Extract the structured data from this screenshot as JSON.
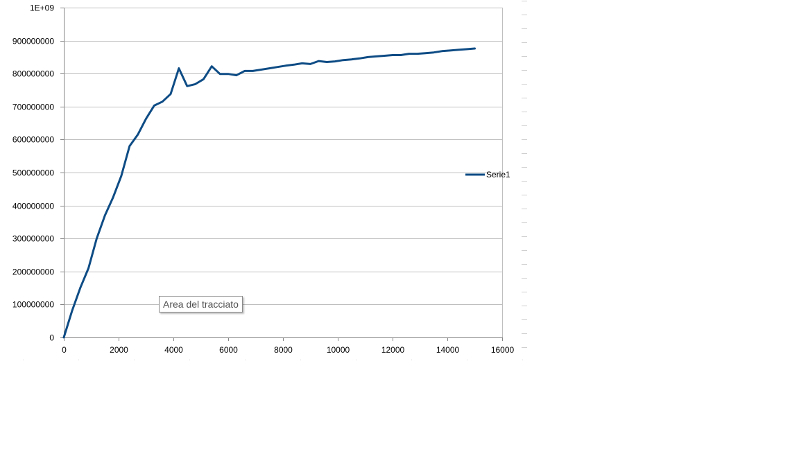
{
  "chart_data": {
    "type": "line",
    "title": "",
    "xlabel": "",
    "ylabel": "",
    "xlim": [
      0,
      16000
    ],
    "ylim": [
      0,
      1000000000
    ],
    "x_ticks": [
      "0",
      "2000",
      "4000",
      "6000",
      "8000",
      "10000",
      "12000",
      "14000",
      "16000"
    ],
    "y_ticks": [
      "0",
      "100000000",
      "200000000",
      "300000000",
      "400000000",
      "500000000",
      "600000000",
      "700000000",
      "800000000",
      "900000000",
      "1E+09"
    ],
    "grid": "horizontal",
    "legend_position": "right",
    "series": [
      {
        "name": "Serie1",
        "color": "#0e4c85",
        "x": [
          0,
          300,
          600,
          900,
          1200,
          1500,
          1800,
          2100,
          2400,
          2700,
          3000,
          3300,
          3600,
          3900,
          4200,
          4500,
          4800,
          5100,
          5400,
          5700,
          6000,
          6300,
          6600,
          6900,
          7200,
          7500,
          7800,
          8100,
          8400,
          8700,
          9000,
          9300,
          9600,
          9900,
          10200,
          10500,
          10800,
          11100,
          11400,
          11700,
          12000,
          12300,
          12600,
          12900,
          13200,
          13500,
          13800,
          14100,
          14400,
          14700,
          15000
        ],
        "y": [
          0,
          80000000,
          150000000,
          210000000,
          300000000,
          370000000,
          425000000,
          490000000,
          580000000,
          615000000,
          663000000,
          703000000,
          715000000,
          738000000,
          816000000,
          762000000,
          768000000,
          783000000,
          822000000,
          799000000,
          799000000,
          795000000,
          808000000,
          808000000,
          812000000,
          816000000,
          820000000,
          824000000,
          827000000,
          831000000,
          829000000,
          838000000,
          835000000,
          837000000,
          841000000,
          843000000,
          846000000,
          850000000,
          852000000,
          854000000,
          856000000,
          856000000,
          860000000,
          860000000,
          862000000,
          864000000,
          868000000,
          870000000,
          872000000,
          874000000,
          876000000
        ]
      }
    ]
  },
  "tooltip": {
    "text": "Area del tracciato"
  }
}
